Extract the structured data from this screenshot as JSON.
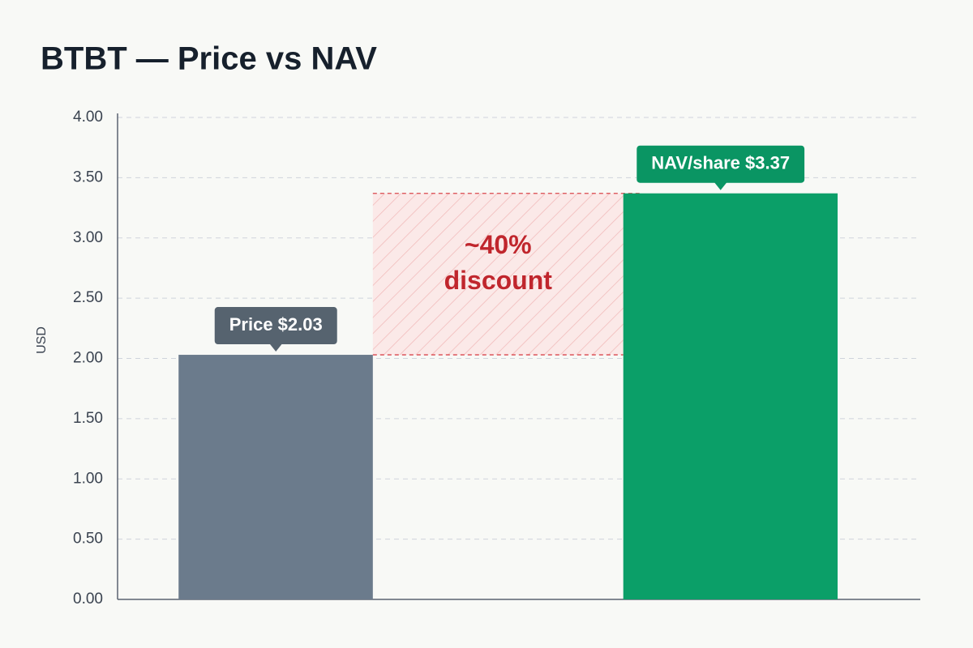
{
  "chart_data": {
    "type": "bar",
    "title": "BTBT — Price vs NAV",
    "ylabel": "USD",
    "categories": [
      null,
      null
    ],
    "values": [
      2.03,
      3.37
    ],
    "value_labels": [
      "Price $2.03",
      "NAV/share $3.37"
    ],
    "colors": [
      "#6b7b8c",
      "#0b9f68"
    ],
    "annotation": [
      "~40%",
      "discount"
    ],
    "ylim": [
      0,
      4
    ],
    "yticks": [
      {
        "value": 0,
        "label": "0.00"
      },
      {
        "value": 0.5,
        "label": "0.50"
      },
      {
        "value": 1,
        "label": "1.00"
      },
      {
        "value": 1.5,
        "label": "1.50"
      },
      {
        "value": 2,
        "label": "2.00"
      },
      {
        "value": 2.5,
        "label": "2.50"
      },
      {
        "value": 3,
        "label": "3.00"
      },
      {
        "value": 3.5,
        "label": "3.50"
      },
      {
        "value": 4,
        "label": "4.00"
      }
    ],
    "grid": true
  }
}
